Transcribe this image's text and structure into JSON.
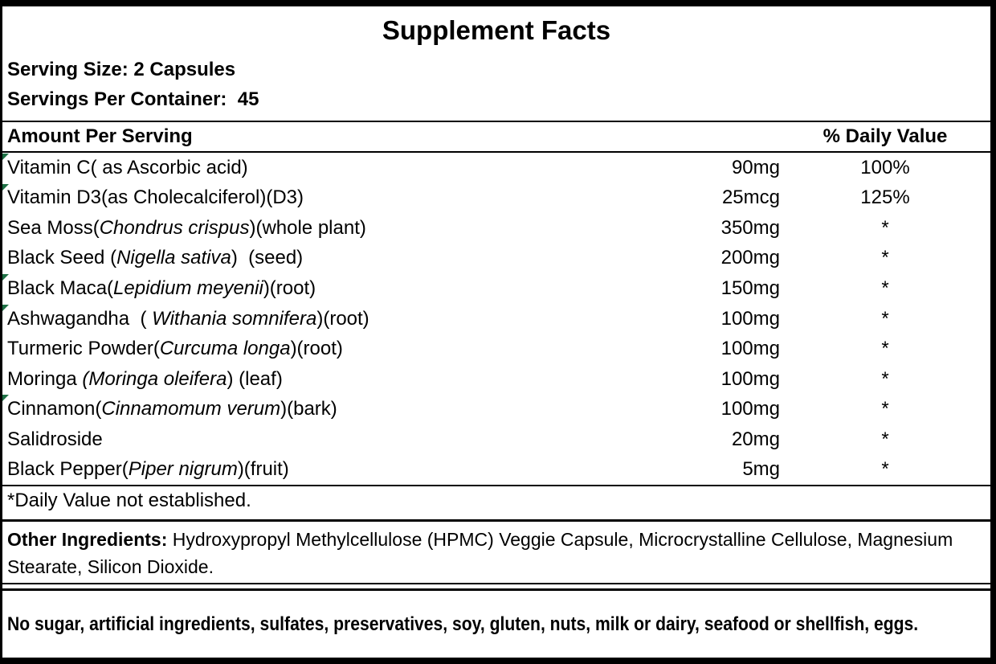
{
  "colors": {
    "text": "#000000",
    "background": "#ffffff",
    "border": "#000000",
    "flag_green": "#1E7145"
  },
  "label": {
    "title": "Supplement Facts",
    "serving_size_label": "Serving Size: 2 Capsules",
    "servings_per_container_label": "Servings Per Container:  45",
    "columns": {
      "amount_header": "Amount Per Serving",
      "dv_header": "% Daily Value"
    },
    "ingredients": [
      {
        "name_segments": [
          {
            "text": "Vitamin C( as Ascorbic acid)",
            "italic": false
          }
        ],
        "amount": "90mg",
        "daily_value": "100%",
        "excel_flag": true
      },
      {
        "name_segments": [
          {
            "text": "Vitamin D3(as Cholecalciferol)(D3)",
            "italic": false
          }
        ],
        "amount": "25mcg",
        "daily_value": "125%",
        "excel_flag": true
      },
      {
        "name_segments": [
          {
            "text": "Sea Moss(",
            "italic": false
          },
          {
            "text": "Chondrus crispus",
            "italic": true
          },
          {
            "text": ")(whole plant)",
            "italic": false
          }
        ],
        "amount": "350mg",
        "daily_value": "*",
        "excel_flag": false
      },
      {
        "name_segments": [
          {
            "text": "Black Seed (",
            "italic": false
          },
          {
            "text": "Nigella sativa",
            "italic": true
          },
          {
            "text": ")  (seed)",
            "italic": false
          }
        ],
        "amount": "200mg",
        "daily_value": "*",
        "excel_flag": false
      },
      {
        "name_segments": [
          {
            "text": "Black Maca(",
            "italic": false
          },
          {
            "text": "Lepidium meyenii",
            "italic": true
          },
          {
            "text": ")(root)",
            "italic": false
          }
        ],
        "amount": "150mg",
        "daily_value": "*",
        "excel_flag": true
      },
      {
        "name_segments": [
          {
            "text": "Ashwagandha  ( ",
            "italic": false
          },
          {
            "text": "Withania somnifera",
            "italic": true
          },
          {
            "text": ")(root)",
            "italic": false
          }
        ],
        "amount": "100mg",
        "daily_value": "*",
        "excel_flag": true
      },
      {
        "name_segments": [
          {
            "text": "Turmeric Powder(",
            "italic": false
          },
          {
            "text": "Curcuma longa",
            "italic": true
          },
          {
            "text": ")(root)",
            "italic": false
          }
        ],
        "amount": "100mg",
        "daily_value": "*",
        "excel_flag": false
      },
      {
        "name_segments": [
          {
            "text": "Moringa ",
            "italic": false
          },
          {
            "text": "(Moringa oleifera",
            "italic": true
          },
          {
            "text": ") (leaf)",
            "italic": false
          }
        ],
        "amount": "100mg",
        "daily_value": "*",
        "excel_flag": false
      },
      {
        "name_segments": [
          {
            "text": "Cinnamon(",
            "italic": false
          },
          {
            "text": "Cinnamomum verum",
            "italic": true
          },
          {
            "text": ")(bark)",
            "italic": false
          }
        ],
        "amount": "100mg",
        "daily_value": "*",
        "excel_flag": true
      },
      {
        "name_segments": [
          {
            "text": "Salidroside",
            "italic": false
          }
        ],
        "amount": "20mg",
        "daily_value": "*",
        "excel_flag": false
      },
      {
        "name_segments": [
          {
            "text": "Black Pepper(",
            "italic": false
          },
          {
            "text": "Piper nigrum",
            "italic": true
          },
          {
            "text": ")(fruit)",
            "italic": false
          }
        ],
        "amount": "5mg",
        "daily_value": "*",
        "excel_flag": false
      }
    ],
    "footnote": "*Daily Value not established.",
    "other_ingredients_lead": "Other Ingredients:",
    "other_ingredients_text": " Hydroxypropyl Methylcellulose (HPMC) Veggie Capsule, Microcrystalline Cellulose, Magnesium Stearate, Silicon Dioxide.",
    "allergen_statement": "No sugar, artificial ingredients, sulfates, preservatives, soy, gluten, nuts, milk or dairy, seafood or shellfish, eggs."
  }
}
